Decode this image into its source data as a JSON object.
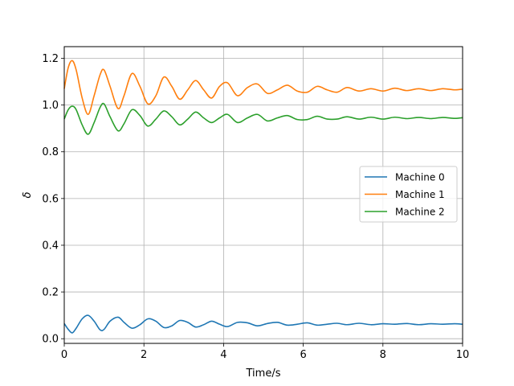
{
  "chart_data": {
    "type": "line",
    "xlabel": "Time/s",
    "ylabel": "δ",
    "xlim": [
      0,
      10
    ],
    "ylim": [
      -0.02,
      1.25
    ],
    "xticks": [
      0,
      2,
      4,
      6,
      8,
      10
    ],
    "yticks": [
      0.0,
      0.2,
      0.4,
      0.6,
      0.8,
      1.0,
      1.2
    ],
    "xtick_labels": [
      "0",
      "2",
      "4",
      "6",
      "8",
      "10"
    ],
    "ytick_labels": [
      "0.0",
      "0.2",
      "0.4",
      "0.6",
      "0.8",
      "1.0",
      "1.2"
    ],
    "grid": true,
    "legend_position": "center-right",
    "series": [
      {
        "name": "Machine 0",
        "color": "#1f77b4",
        "x": [
          0,
          0.1,
          0.2,
          0.3,
          0.45,
          0.6,
          0.75,
          0.9,
          1.0,
          1.15,
          1.35,
          1.5,
          1.7,
          1.9,
          2.1,
          2.3,
          2.5,
          2.7,
          2.9,
          3.1,
          3.3,
          3.5,
          3.7,
          3.9,
          4.1,
          4.35,
          4.6,
          4.85,
          5.1,
          5.35,
          5.6,
          5.85,
          6.1,
          6.35,
          6.6,
          6.85,
          7.1,
          7.4,
          7.7,
          8.0,
          8.3,
          8.6,
          8.9,
          9.2,
          9.5,
          9.8,
          10.0
        ],
        "y": [
          0.065,
          0.04,
          0.025,
          0.045,
          0.085,
          0.1,
          0.075,
          0.038,
          0.04,
          0.075,
          0.092,
          0.07,
          0.045,
          0.06,
          0.085,
          0.075,
          0.048,
          0.055,
          0.078,
          0.07,
          0.05,
          0.06,
          0.075,
          0.062,
          0.052,
          0.07,
          0.068,
          0.055,
          0.065,
          0.07,
          0.058,
          0.062,
          0.068,
          0.058,
          0.062,
          0.066,
          0.06,
          0.066,
          0.06,
          0.064,
          0.062,
          0.065,
          0.06,
          0.064,
          0.062,
          0.064,
          0.062
        ]
      },
      {
        "name": "Machine 1",
        "color": "#ff7f0e",
        "x": [
          0,
          0.1,
          0.2,
          0.3,
          0.45,
          0.6,
          0.75,
          0.9,
          1.0,
          1.15,
          1.35,
          1.5,
          1.7,
          1.9,
          2.1,
          2.3,
          2.5,
          2.7,
          2.9,
          3.1,
          3.3,
          3.5,
          3.7,
          3.9,
          4.1,
          4.35,
          4.6,
          4.85,
          5.1,
          5.35,
          5.6,
          5.85,
          6.1,
          6.35,
          6.6,
          6.85,
          7.1,
          7.4,
          7.7,
          8.0,
          8.3,
          8.6,
          8.9,
          9.2,
          9.5,
          9.8,
          10.0
        ],
        "y": [
          1.07,
          1.16,
          1.19,
          1.15,
          1.03,
          0.96,
          1.04,
          1.13,
          1.15,
          1.08,
          0.985,
          1.04,
          1.135,
          1.08,
          1.005,
          1.04,
          1.12,
          1.08,
          1.025,
          1.065,
          1.105,
          1.065,
          1.03,
          1.08,
          1.095,
          1.04,
          1.075,
          1.09,
          1.05,
          1.065,
          1.085,
          1.06,
          1.055,
          1.08,
          1.065,
          1.055,
          1.075,
          1.06,
          1.07,
          1.06,
          1.072,
          1.062,
          1.07,
          1.062,
          1.07,
          1.065,
          1.068
        ]
      },
      {
        "name": "Machine 2",
        "color": "#2ca02c",
        "x": [
          0,
          0.1,
          0.2,
          0.3,
          0.45,
          0.6,
          0.75,
          0.9,
          1.0,
          1.15,
          1.35,
          1.5,
          1.7,
          1.9,
          2.1,
          2.3,
          2.5,
          2.7,
          2.9,
          3.1,
          3.3,
          3.5,
          3.7,
          3.9,
          4.1,
          4.35,
          4.6,
          4.85,
          5.1,
          5.35,
          5.6,
          5.85,
          6.1,
          6.35,
          6.6,
          6.85,
          7.1,
          7.4,
          7.7,
          8.0,
          8.3,
          8.6,
          8.9,
          9.2,
          9.5,
          9.8,
          10.0
        ],
        "y": [
          0.94,
          0.98,
          0.995,
          0.98,
          0.915,
          0.875,
          0.925,
          0.99,
          1.005,
          0.95,
          0.89,
          0.92,
          0.98,
          0.955,
          0.91,
          0.94,
          0.975,
          0.95,
          0.915,
          0.94,
          0.97,
          0.945,
          0.925,
          0.945,
          0.96,
          0.925,
          0.945,
          0.96,
          0.932,
          0.945,
          0.955,
          0.938,
          0.938,
          0.952,
          0.94,
          0.94,
          0.95,
          0.94,
          0.948,
          0.94,
          0.948,
          0.942,
          0.947,
          0.942,
          0.947,
          0.943,
          0.946
        ]
      }
    ]
  }
}
